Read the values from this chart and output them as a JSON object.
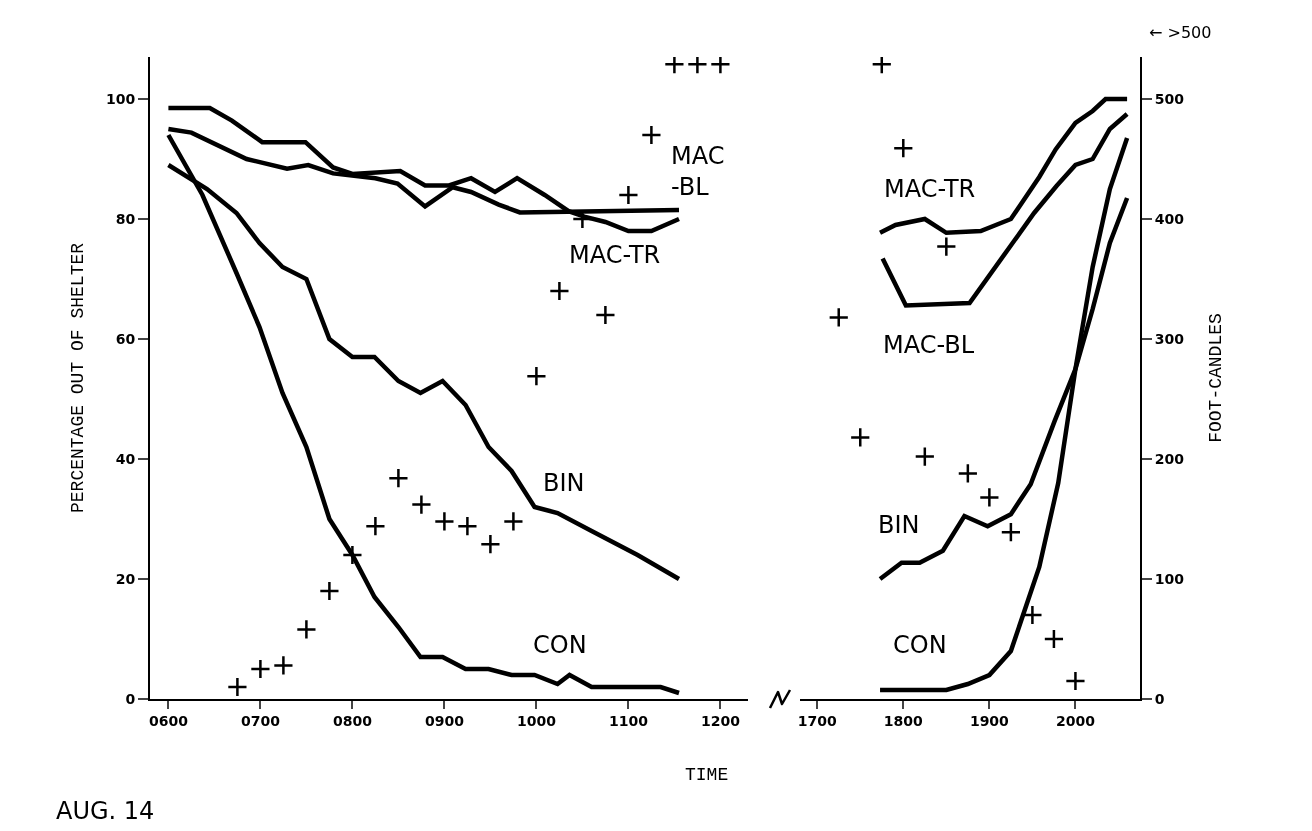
{
  "chart_data": [
    {
      "type": "line",
      "xlabel": "TIME",
      "ylabel": "PERCENTAGE OUT OF SHELTER",
      "legend": false,
      "grid": false,
      "xlim": [
        580,
        1230
      ],
      "xticks": [
        {
          "value": 600,
          "label": "0600"
        },
        {
          "value": 700,
          "label": "0700"
        },
        {
          "value": 800,
          "label": "0800"
        },
        {
          "value": 900,
          "label": "0900"
        },
        1000,
        1100,
        1200
      ],
      "ylim": [
        0,
        107
      ],
      "yticks": [
        0,
        20,
        40,
        60,
        80,
        100
      ],
      "y2lim": [
        0,
        535
      ],
      "series": [
        {
          "type": "line",
          "name": "MAC-TR",
          "color": "#000000",
          "x": [
            600,
            645,
            669,
            702,
            749,
            779,
            800,
            852,
            879,
            905,
            929,
            955,
            979,
            1009,
            1035,
            1052,
            1075,
            1100,
            1125,
            1155
          ],
          "values": [
            98.5,
            98.5,
            96.4,
            92.8,
            92.8,
            88.6,
            87.5,
            88,
            85.6,
            85.6,
            86.8,
            84.5,
            86.8,
            84,
            81.3,
            80.4,
            79.5,
            78,
            78,
            80
          ]
        },
        {
          "type": "line",
          "name": "MAC\n-BL",
          "color": "#000000",
          "x": [
            600,
            625,
            685,
            729,
            752,
            779,
            825,
            849,
            879,
            909,
            929,
            959,
            982,
            1155
          ],
          "values": [
            95,
            94.4,
            90,
            88.4,
            89,
            87.6,
            86.8,
            85.9,
            82.1,
            85.3,
            84.5,
            82.4,
            81.1,
            81.5
          ]
        },
        {
          "type": "line",
          "name": "BIN",
          "color": "#000000",
          "x": [
            600,
            642,
            674,
            699,
            724,
            750,
            775,
            800,
            824,
            850,
            874,
            898,
            923,
            948,
            973,
            998,
            1023,
            1060,
            1110,
            1155
          ],
          "values": [
            89,
            85,
            81,
            76,
            72,
            70,
            60,
            57,
            57,
            53,
            51,
            53,
            49,
            42,
            38,
            32,
            31,
            28,
            24,
            20
          ]
        },
        {
          "type": "line",
          "name": "CON",
          "color": "#000000",
          "x": [
            600,
            637,
            674,
            699,
            724,
            750,
            775,
            800,
            824,
            850,
            874,
            898,
            923,
            948,
            973,
            998,
            1023,
            1036,
            1060,
            1085,
            1110,
            1135,
            1155
          ],
          "values": [
            94,
            84,
            71,
            62,
            51,
            42,
            30,
            24,
            17,
            12,
            7,
            7,
            5,
            5,
            4,
            4,
            2.5,
            4,
            2,
            2,
            2,
            2,
            1
          ]
        },
        {
          "type": "scatter",
          "axis": "y2",
          "marker": "cross",
          "color": "#000000",
          "x": [
            675,
            700,
            725,
            750,
            775,
            800,
            825,
            850,
            875,
            900,
            925,
            950,
            975,
            1000,
            1025,
            1050,
            1075,
            1100,
            1125,
            1150,
            1175,
            1200
          ],
          "values": [
            10,
            25,
            28,
            58,
            90,
            120,
            144,
            184,
            162,
            148,
            144,
            129,
            148,
            269,
            340,
            400,
            320,
            420,
            470,
            529,
            529,
            529
          ]
        }
      ],
      "annotations": [
        "AUG. 14"
      ]
    },
    {
      "type": "line",
      "y2label": "FOOT-CANDLES",
      "legend": false,
      "grid": false,
      "xlim": [
        1680,
        2075
      ],
      "xticks": [
        1700,
        1800,
        1900,
        2000
      ],
      "ylim": [
        0,
        107
      ],
      "y2lim": [
        0,
        535
      ],
      "y2ticks": [
        0,
        100,
        200,
        300,
        400,
        500
      ],
      "series": [
        {
          "type": "line",
          "name": "MAC-TR",
          "color": "#000000",
          "x": [
            1773,
            1791,
            1825,
            1850,
            1890,
            1925,
            1958,
            1977,
            2000,
            2020,
            2035,
            2060
          ],
          "values": [
            77.7,
            79,
            80,
            77.7,
            78,
            80,
            87,
            91.6,
            96,
            98,
            100,
            100
          ]
        },
        {
          "type": "line",
          "name": "MAC-BL",
          "color": "#000000",
          "x": [
            1776,
            1803,
            1877,
            1952,
            1978,
            2000,
            2020,
            2040,
            2060
          ],
          "values": [
            73.4,
            65.6,
            66,
            81,
            85.5,
            89,
            90,
            95,
            97.5
          ]
        },
        {
          "type": "line",
          "name": "BIN",
          "color": "#000000",
          "x": [
            1773,
            1798,
            1819,
            1846,
            1871,
            1898,
            1925,
            1948,
            1976,
            2000,
            2020,
            2040,
            2060
          ],
          "values": [
            20,
            22.7,
            22.7,
            24.7,
            30.5,
            28.8,
            30.8,
            35.8,
            46.4,
            55,
            65,
            76,
            83.5
          ]
        },
        {
          "type": "line",
          "name": "CON",
          "color": "#000000",
          "x": [
            1773,
            1850,
            1875,
            1900,
            1925,
            1958,
            1980,
            2000,
            2020,
            2040,
            2060
          ],
          "values": [
            1.5,
            1.5,
            2.5,
            4,
            8,
            22,
            36,
            55,
            72,
            85,
            93.5
          ]
        },
        {
          "type": "scatter",
          "axis": "y2",
          "marker": "cross",
          "color": "#000000",
          "x": [
            1725,
            1750,
            1775,
            1800,
            1825,
            1850,
            1875,
            1900,
            1925,
            1950,
            1975,
            2000
          ],
          "values": [
            318,
            218,
            529,
            459,
            202,
            377,
            188,
            168,
            139,
            70,
            50,
            15
          ]
        }
      ],
      "annotations": [
        "← >500"
      ]
    }
  ]
}
